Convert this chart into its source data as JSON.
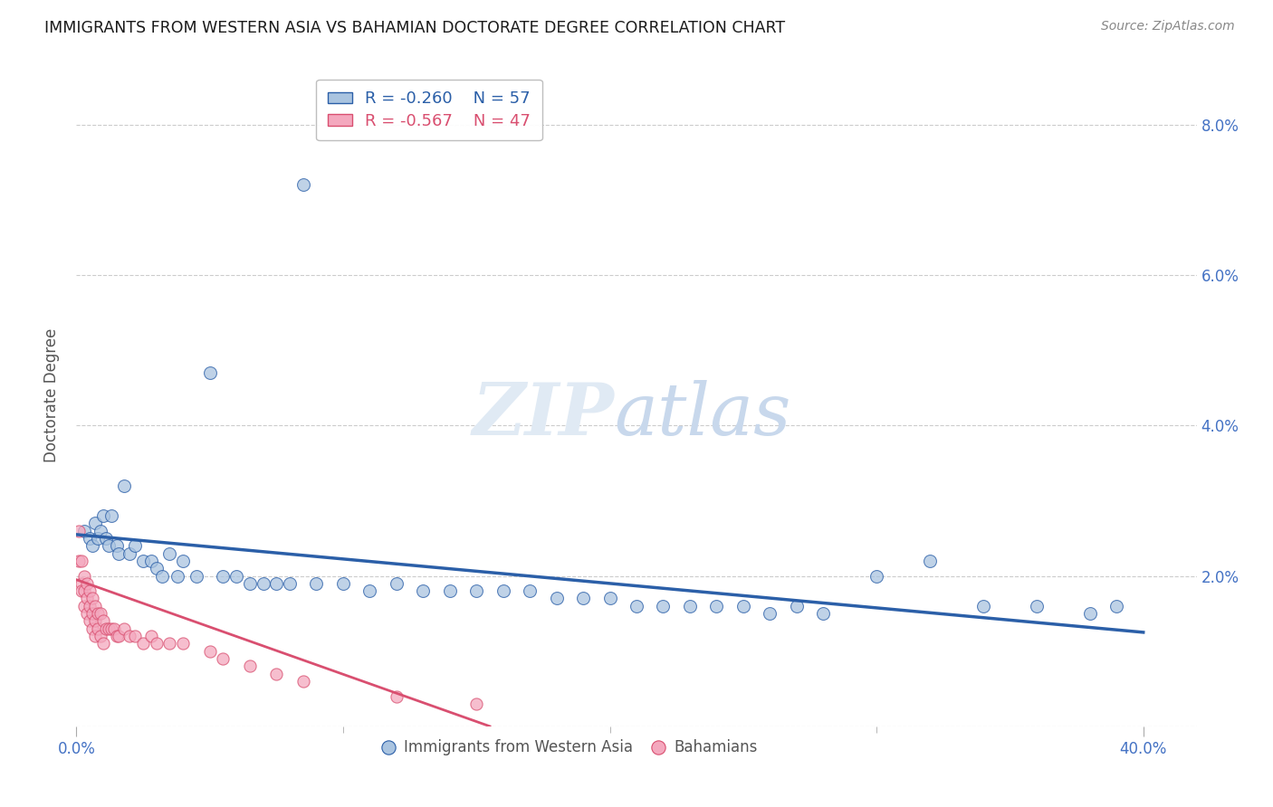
{
  "title": "IMMIGRANTS FROM WESTERN ASIA VS BAHAMIAN DOCTORATE DEGREE CORRELATION CHART",
  "source": "Source: ZipAtlas.com",
  "ylabel": "Doctorate Degree",
  "xlim": [
    0.0,
    0.42
  ],
  "ylim": [
    0.0,
    0.088
  ],
  "xtick_vals": [
    0.0,
    0.4
  ],
  "xtick_labels": [
    "0.0%",
    "40.0%"
  ],
  "xtick_minor_vals": [
    0.1,
    0.2,
    0.3
  ],
  "ytick_vals": [
    0.0,
    0.02,
    0.04,
    0.06,
    0.08
  ],
  "ytick_labels": [
    "",
    "2.0%",
    "4.0%",
    "6.0%",
    "8.0%"
  ],
  "blue_R": -0.26,
  "blue_N": 57,
  "pink_R": -0.567,
  "pink_N": 47,
  "blue_color": "#aac4e0",
  "pink_color": "#f4a8be",
  "blue_line_color": "#2b5fa8",
  "pink_line_color": "#d94f70",
  "legend_label_blue": "Immigrants from Western Asia",
  "legend_label_pink": "Bahamians",
  "blue_scatter_x": [
    0.003,
    0.005,
    0.006,
    0.007,
    0.008,
    0.009,
    0.01,
    0.011,
    0.012,
    0.013,
    0.015,
    0.016,
    0.018,
    0.02,
    0.022,
    0.025,
    0.028,
    0.03,
    0.032,
    0.035,
    0.038,
    0.04,
    0.045,
    0.05,
    0.055,
    0.06,
    0.065,
    0.07,
    0.075,
    0.08,
    0.09,
    0.1,
    0.11,
    0.12,
    0.13,
    0.14,
    0.15,
    0.16,
    0.17,
    0.18,
    0.19,
    0.2,
    0.21,
    0.22,
    0.23,
    0.24,
    0.25,
    0.26,
    0.27,
    0.28,
    0.3,
    0.32,
    0.34,
    0.36,
    0.38,
    0.39,
    0.085
  ],
  "blue_scatter_y": [
    0.026,
    0.025,
    0.024,
    0.027,
    0.025,
    0.026,
    0.028,
    0.025,
    0.024,
    0.028,
    0.024,
    0.023,
    0.032,
    0.023,
    0.024,
    0.022,
    0.022,
    0.021,
    0.02,
    0.023,
    0.02,
    0.022,
    0.02,
    0.047,
    0.02,
    0.02,
    0.019,
    0.019,
    0.019,
    0.019,
    0.019,
    0.019,
    0.018,
    0.019,
    0.018,
    0.018,
    0.018,
    0.018,
    0.018,
    0.017,
    0.017,
    0.017,
    0.016,
    0.016,
    0.016,
    0.016,
    0.016,
    0.015,
    0.016,
    0.015,
    0.02,
    0.022,
    0.016,
    0.016,
    0.015,
    0.016,
    0.072
  ],
  "pink_scatter_x": [
    0.001,
    0.001,
    0.002,
    0.002,
    0.002,
    0.003,
    0.003,
    0.003,
    0.004,
    0.004,
    0.004,
    0.005,
    0.005,
    0.005,
    0.006,
    0.006,
    0.006,
    0.007,
    0.007,
    0.007,
    0.008,
    0.008,
    0.009,
    0.009,
    0.01,
    0.01,
    0.011,
    0.012,
    0.013,
    0.014,
    0.015,
    0.016,
    0.018,
    0.02,
    0.022,
    0.025,
    0.028,
    0.03,
    0.035,
    0.04,
    0.05,
    0.055,
    0.065,
    0.075,
    0.085,
    0.12,
    0.15
  ],
  "pink_scatter_y": [
    0.026,
    0.022,
    0.022,
    0.019,
    0.018,
    0.02,
    0.018,
    0.016,
    0.019,
    0.017,
    0.015,
    0.018,
    0.016,
    0.014,
    0.017,
    0.015,
    0.013,
    0.016,
    0.014,
    0.012,
    0.015,
    0.013,
    0.015,
    0.012,
    0.014,
    0.011,
    0.013,
    0.013,
    0.013,
    0.013,
    0.012,
    0.012,
    0.013,
    0.012,
    0.012,
    0.011,
    0.012,
    0.011,
    0.011,
    0.011,
    0.01,
    0.009,
    0.008,
    0.007,
    0.006,
    0.004,
    0.003
  ],
  "blue_line_x0": 0.0,
  "blue_line_x1": 0.4,
  "blue_line_y0": 0.0255,
  "blue_line_y1": 0.0125,
  "pink_line_x0": 0.0,
  "pink_line_x1": 0.155,
  "pink_line_y0": 0.0195,
  "pink_line_y1": 0.0
}
